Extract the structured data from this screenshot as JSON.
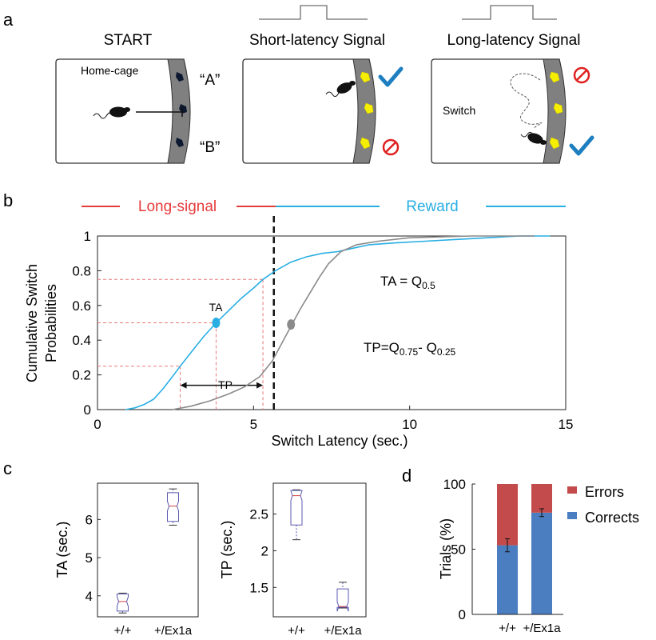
{
  "panel_letters": {
    "a": "a",
    "b": "b",
    "c": "c",
    "d": "d"
  },
  "panel_a": {
    "titles": [
      "START",
      "Short-latency Signal",
      "Long-latency Signal"
    ],
    "home_cage_label": "Home-cage",
    "port_a_label": "“A”",
    "port_b_label": "“B”",
    "switch_label": "Switch",
    "icons": [
      "mouse-icon",
      "check-icon",
      "no-entry-icon",
      "signal-pulse-icon",
      "port-light-icon"
    ],
    "colors": {
      "port_lit": "#f5ee00",
      "port_dark": "#0c1830",
      "wall": "#808080",
      "check": "#1e7fc0",
      "forbid": "#e02020"
    }
  },
  "chart_data": [
    {
      "type": "line",
      "panel": "b",
      "xlabel": "Switch Latency (sec.)",
      "ylabel_lines": [
        "Cumulative Switch",
        "Probabilities"
      ],
      "xlim": [
        0,
        15
      ],
      "ylim": [
        0,
        1
      ],
      "x_ticks": [
        0,
        5,
        10,
        15
      ],
      "y_ticks": [
        0,
        0.2,
        0.4,
        0.6,
        0.8,
        1
      ],
      "x_tick_labels": [
        "0",
        "5",
        "10",
        "15"
      ],
      "y_tick_labels": [
        "0",
        "0.2",
        "0.4",
        "0.6",
        "0.8",
        "1"
      ],
      "long_signal_label": "Long-signal",
      "reward_label": "Reward",
      "long_signal_end": 5.65,
      "ta_label": "TA",
      "tp_label": "TP",
      "ta_formula": "TA = Q",
      "ta_formula_sub": "0.5",
      "tp_formula": "TP=Q",
      "tp_formula_sub1": "0.75",
      "tp_formula_mid": "- Q",
      "tp_formula_sub2": "0.25",
      "quantiles": {
        "q25": 2.65,
        "q50": 3.8,
        "q75": 5.3
      },
      "series": [
        {
          "color": "#29aee3",
          "x": [
            0.9,
            1.2,
            1.5,
            1.8,
            2.1,
            2.4,
            2.65,
            3.0,
            3.4,
            3.8,
            4.2,
            4.6,
            5.0,
            5.3,
            5.7,
            6.2,
            6.7,
            7.2,
            7.7,
            8.2,
            8.7,
            9.5,
            10.5,
            11.5,
            12.5,
            13.5,
            14.5
          ],
          "y": [
            0,
            0.01,
            0.03,
            0.06,
            0.12,
            0.19,
            0.25,
            0.33,
            0.42,
            0.5,
            0.57,
            0.64,
            0.7,
            0.75,
            0.8,
            0.85,
            0.88,
            0.9,
            0.91,
            0.93,
            0.95,
            0.96,
            0.97,
            0.98,
            0.99,
            1.0,
            1.0
          ]
        },
        {
          "color": "#8a8a8a",
          "x": [
            2.4,
            3.0,
            3.6,
            4.2,
            4.7,
            5.2,
            5.6,
            5.9,
            6.2,
            6.5,
            6.8,
            7.1,
            7.4,
            7.8,
            8.3,
            9.0,
            10.0,
            11.0,
            12.0,
            13.0,
            14.0
          ],
          "y": [
            0,
            0.02,
            0.05,
            0.09,
            0.13,
            0.19,
            0.28,
            0.38,
            0.48,
            0.58,
            0.67,
            0.76,
            0.84,
            0.91,
            0.95,
            0.97,
            0.99,
            0.995,
            1.0,
            1.0,
            1.0
          ]
        }
      ],
      "median_points": [
        {
          "x": 3.8,
          "y": 0.5,
          "color": "#29aee3"
        },
        {
          "x": 6.2,
          "y": 0.49,
          "color": "#8a8a8a"
        }
      ]
    },
    {
      "type": "box",
      "panel": "c-left",
      "ylabel": "TA (sec.)",
      "categories": [
        "+/+",
        "+/Ex1a"
      ],
      "ylim": [
        3.45,
        6.95
      ],
      "y_ticks": [
        4,
        5,
        6
      ],
      "y_tick_labels": [
        "4",
        "5",
        "6"
      ],
      "boxes": [
        {
          "min": 3.55,
          "q1": 3.6,
          "median": 3.85,
          "q3": 4.05,
          "max": 4.07
        },
        {
          "min": 5.85,
          "q1": 5.95,
          "median": 6.35,
          "q3": 6.7,
          "max": 6.8
        }
      ]
    },
    {
      "type": "box",
      "panel": "c-right",
      "ylabel": "TP (sec.)",
      "categories": [
        "+/+",
        "+/Ex1a"
      ],
      "ylim": [
        1.1,
        2.92
      ],
      "y_ticks": [
        1.5,
        2,
        2.5
      ],
      "y_tick_labels": [
        "1.5",
        "2",
        "2.5"
      ],
      "boxes": [
        {
          "min": 2.15,
          "q1": 2.35,
          "median": 2.75,
          "q3": 2.82,
          "max": 2.83
        },
        {
          "min": 1.22,
          "q1": 1.23,
          "median": 1.24,
          "q3": 1.48,
          "max": 1.57
        }
      ]
    },
    {
      "type": "bar",
      "stacked": true,
      "panel": "d",
      "ylabel": "Trials (%)",
      "categories": [
        "+/+",
        "+/Ex1a"
      ],
      "ylim": [
        0,
        100
      ],
      "y_ticks": [
        0,
        50,
        100
      ],
      "y_tick_labels": [
        "0",
        "50",
        "100"
      ],
      "legend_position": "top-right",
      "series": [
        {
          "name": "Corrects",
          "color": "#4a7ec0",
          "values": [
            53,
            78
          ],
          "errors": [
            5,
            3
          ]
        },
        {
          "name": "Errors",
          "color": "#c44b4b",
          "values": [
            47,
            22
          ]
        }
      ]
    }
  ]
}
